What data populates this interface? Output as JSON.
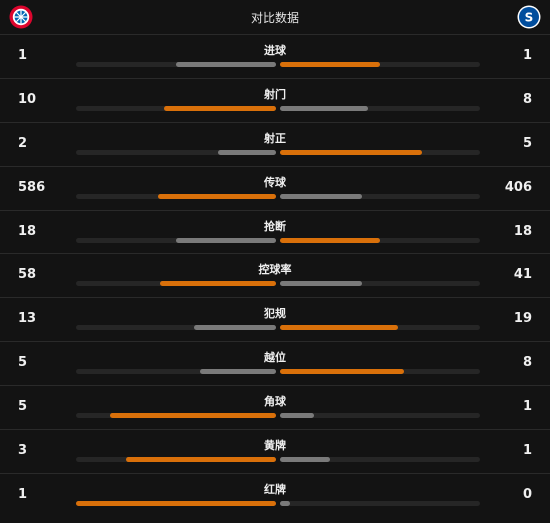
{
  "header": {
    "title": "对比数据",
    "home_logo_icon": "bayern-munich-crest-icon",
    "away_logo_icon": "schalke-04-crest-icon"
  },
  "colors": {
    "leader": "#d9700a",
    "trailer": "#7a7a7a",
    "track": "#262626",
    "background": "#131313"
  },
  "stats": [
    {
      "label": "进球",
      "home": "1",
      "away": "1",
      "home_ratio": 0.5,
      "away_ratio": 0.5,
      "leader": "away"
    },
    {
      "label": "射门",
      "home": "10",
      "away": "8",
      "home_ratio": 0.56,
      "away_ratio": 0.44,
      "leader": "home"
    },
    {
      "label": "射正",
      "home": "2",
      "away": "5",
      "home_ratio": 0.29,
      "away_ratio": 0.71,
      "leader": "away"
    },
    {
      "label": "传球",
      "home": "586",
      "away": "406",
      "home_ratio": 0.59,
      "away_ratio": 0.41,
      "leader": "home"
    },
    {
      "label": "抢断",
      "home": "18",
      "away": "18",
      "home_ratio": 0.5,
      "away_ratio": 0.5,
      "leader": "away"
    },
    {
      "label": "控球率",
      "home": "58",
      "away": "41",
      "home_ratio": 0.58,
      "away_ratio": 0.41,
      "leader": "home"
    },
    {
      "label": "犯规",
      "home": "13",
      "away": "19",
      "home_ratio": 0.41,
      "away_ratio": 0.59,
      "leader": "away"
    },
    {
      "label": "越位",
      "home": "5",
      "away": "8",
      "home_ratio": 0.38,
      "away_ratio": 0.62,
      "leader": "away"
    },
    {
      "label": "角球",
      "home": "5",
      "away": "1",
      "home_ratio": 0.83,
      "away_ratio": 0.17,
      "leader": "home"
    },
    {
      "label": "黄牌",
      "home": "3",
      "away": "1",
      "home_ratio": 0.75,
      "away_ratio": 0.25,
      "leader": "home"
    },
    {
      "label": "红牌",
      "home": "1",
      "away": "0",
      "home_ratio": 1.0,
      "away_ratio": 0.05,
      "leader": "home"
    }
  ]
}
